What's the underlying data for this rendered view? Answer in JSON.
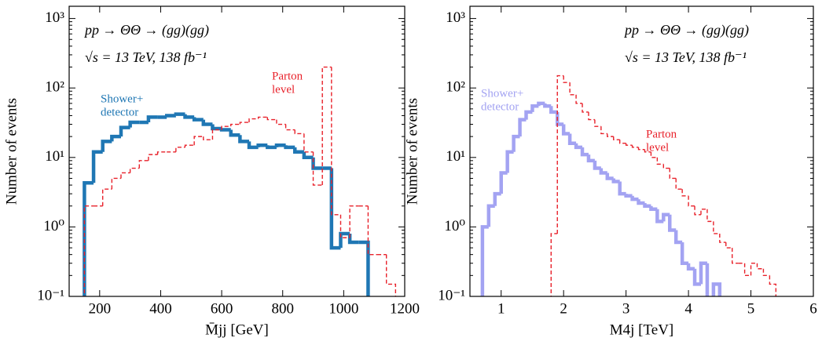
{
  "chart_data": [
    {
      "type": "histogram",
      "xlabel": "M̄jj [GeV]",
      "ylabel": "Number of events",
      "annotations": [
        "pp → ΘΘ → (gg)(gg)",
        "√s = 13 TeV,   138 fb⁻¹"
      ],
      "xlim": [
        100,
        1200
      ],
      "xticks": [
        200,
        400,
        600,
        800,
        1000,
        1200
      ],
      "ylim": [
        0.1,
        1500
      ],
      "log_y": true,
      "yticks": [
        {
          "value": 0.1,
          "label": "10⁻¹"
        },
        {
          "value": 1,
          "label": "10⁰"
        },
        {
          "value": 10,
          "label": "10¹"
        },
        {
          "value": 100,
          "label": "10²"
        },
        {
          "value": 1000,
          "label": "10³"
        }
      ],
      "series": [
        {
          "name_lines": [
            "Shower+",
            "detector"
          ],
          "color": "#1f77b4",
          "style": "solid",
          "bins": [
            150,
            180,
            210,
            240,
            270,
            300,
            330,
            360,
            390,
            420,
            450,
            480,
            510,
            540,
            570,
            600,
            630,
            660,
            690,
            720,
            750,
            780,
            810,
            840,
            870,
            900,
            930,
            960,
            990,
            1020,
            1050,
            1080
          ],
          "values": [
            4.3,
            12,
            17,
            20,
            27,
            32,
            32,
            38,
            38,
            40,
            42,
            38,
            35,
            30,
            26,
            25,
            21,
            17,
            14,
            15,
            14,
            15,
            14,
            12,
            10,
            7,
            7,
            0.5,
            0.8,
            0.6,
            0.6
          ]
        },
        {
          "name_lines": [
            "Parton",
            "level"
          ],
          "color": "#e8212a",
          "style": "dashed",
          "bins": [
            150,
            180,
            210,
            240,
            270,
            300,
            330,
            360,
            390,
            420,
            450,
            480,
            510,
            540,
            570,
            600,
            630,
            660,
            690,
            720,
            750,
            780,
            810,
            840,
            870,
            900,
            930,
            960,
            990,
            1020,
            1050,
            1080,
            1110,
            1140,
            1170
          ],
          "values": [
            2,
            2,
            3.5,
            5,
            6,
            7,
            9,
            11,
            12,
            12,
            14,
            15,
            20,
            18,
            25,
            28,
            30,
            32,
            36,
            38,
            35,
            30,
            25,
            22,
            12,
            4,
            200,
            1.5,
            0.7,
            2,
            2,
            0.4,
            0.4,
            0.15
          ]
        }
      ]
    },
    {
      "type": "histogram",
      "xlabel": "M4j [TeV]",
      "ylabel": "Number of events",
      "annotations": [
        "pp → ΘΘ → (gg)(gg)",
        "√s = 13 TeV,   138 fb⁻¹"
      ],
      "xlim": [
        0.5,
        6
      ],
      "xticks": [
        1,
        2,
        3,
        4,
        5,
        6
      ],
      "ylim": [
        0.1,
        1500
      ],
      "log_y": true,
      "yticks": [
        {
          "value": 0.1,
          "label": "10⁻¹"
        },
        {
          "value": 1,
          "label": "10⁰"
        },
        {
          "value": 10,
          "label": "10¹"
        },
        {
          "value": 100,
          "label": "10²"
        },
        {
          "value": 1000,
          "label": "10³"
        }
      ],
      "series": [
        {
          "name_lines": [
            "Shower+",
            "detector"
          ],
          "color": "#a3a3f2",
          "style": "solid",
          "bins": [
            0.7,
            0.8,
            0.9,
            1.0,
            1.1,
            1.2,
            1.3,
            1.4,
            1.5,
            1.6,
            1.7,
            1.8,
            1.9,
            2.0,
            2.1,
            2.2,
            2.3,
            2.4,
            2.5,
            2.6,
            2.7,
            2.8,
            2.9,
            3.0,
            3.1,
            3.2,
            3.3,
            3.4,
            3.5,
            3.6,
            3.7,
            3.8,
            3.9,
            4.0,
            4.1,
            4.2,
            4.3,
            4.4,
            4.5
          ],
          "values": [
            1,
            2,
            3,
            6,
            12,
            20,
            35,
            45,
            55,
            60,
            55,
            45,
            30,
            22,
            16,
            14,
            11,
            9,
            7,
            6,
            5,
            4.5,
            3,
            2.8,
            2.5,
            2.2,
            2,
            1.8,
            1.2,
            1.5,
            0.9,
            0.6,
            0.3,
            0.25,
            0.15,
            0.3,
            0.08,
            0.15
          ]
        },
        {
          "name_lines": [
            "Parton",
            "level"
          ],
          "color": "#e8212a",
          "style": "dashed",
          "bins": [
            1.8,
            1.9,
            2.0,
            2.1,
            2.2,
            2.3,
            2.4,
            2.5,
            2.6,
            2.7,
            2.8,
            2.9,
            3.0,
            3.1,
            3.2,
            3.3,
            3.4,
            3.5,
            3.6,
            3.7,
            3.8,
            3.9,
            4.0,
            4.1,
            4.2,
            4.3,
            4.4,
            4.5,
            4.6,
            4.7,
            4.8,
            4.9,
            5.0,
            5.1,
            5.2,
            5.3,
            5.4
          ],
          "values": [
            0.8,
            150,
            120,
            80,
            60,
            45,
            35,
            28,
            22,
            20,
            18,
            16,
            15,
            14,
            13,
            12,
            10,
            8,
            7,
            5,
            3.5,
            2.8,
            2,
            1.5,
            1.8,
            1.2,
            0.8,
            0.6,
            0.5,
            0.3,
            0.3,
            0.2,
            0.3,
            0.25,
            0.2,
            0.15
          ]
        }
      ]
    }
  ]
}
